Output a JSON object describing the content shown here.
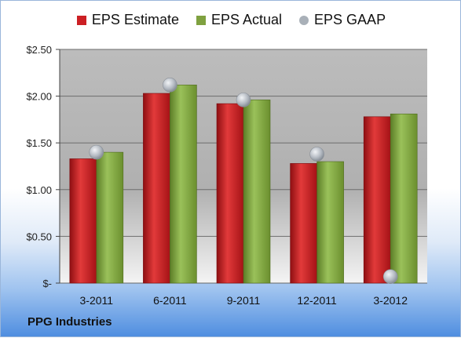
{
  "chart_data": {
    "type": "bar",
    "categories": [
      "3-2011",
      "6-2011",
      "9-2011",
      "12-2011",
      "3-2012"
    ],
    "series": [
      {
        "name": "EPS Estimate",
        "kind": "bar",
        "color": "#cc1f24",
        "values": [
          1.33,
          2.03,
          1.92,
          1.28,
          1.78
        ]
      },
      {
        "name": "EPS Actual",
        "kind": "bar",
        "color": "#7fa140",
        "values": [
          1.4,
          2.12,
          1.96,
          1.3,
          1.81
        ]
      },
      {
        "name": "EPS GAAP",
        "kind": "marker",
        "color": "#a9b0b8",
        "values": [
          1.4,
          2.12,
          1.96,
          1.38,
          0.07
        ]
      }
    ],
    "yticks": [
      "$-",
      "$0.50",
      "$1.00",
      "$1.50",
      "$2.00",
      "$2.50"
    ],
    "ylim": [
      0,
      2.5
    ],
    "grid": true,
    "legend": "top"
  },
  "company": "PPG Industries"
}
